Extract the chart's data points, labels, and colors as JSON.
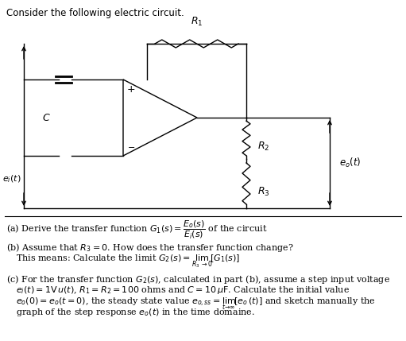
{
  "title": "Consider the following electric circuit.",
  "background_color": "#ffffff",
  "text_color": "#000000",
  "figsize": [
    5.11,
    4.29
  ],
  "dpi": 100,
  "circuit": {
    "R1_label": "$R_1$",
    "R2_label": "$R_2$",
    "R3_label": "$R_3$",
    "C_label": "$C$",
    "ei_label": "$e_i(t)$",
    "eo_label": "$e_o(t)$"
  }
}
